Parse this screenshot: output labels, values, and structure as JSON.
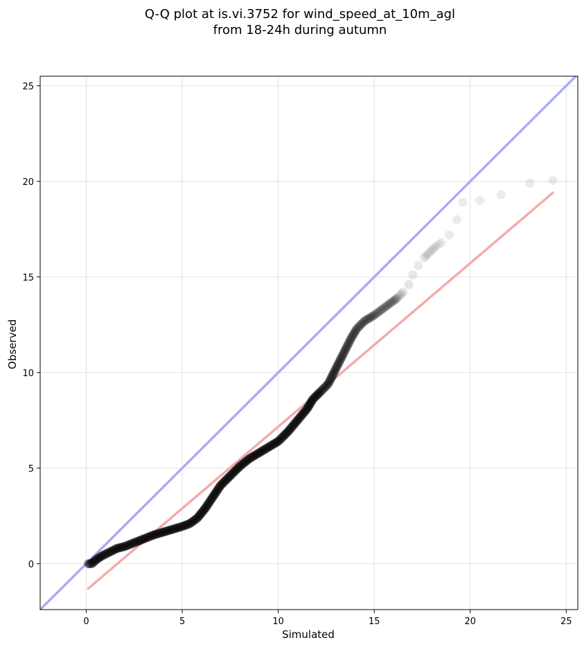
{
  "chart_data": {
    "type": "scatter",
    "title_line1": "Q-Q plot at is.vi.3752 for wind_speed_at_10m_agl",
    "title_line2": "from 18-24h during autumn",
    "xlabel": "Simulated",
    "ylabel": "Observed",
    "xlim": [
      -2.4,
      25.6
    ],
    "ylim": [
      -2.4,
      25.5
    ],
    "xticks": [
      0,
      5,
      10,
      15,
      20,
      25
    ],
    "yticks": [
      0,
      5,
      10,
      15,
      20,
      25
    ],
    "grid": true,
    "series": [
      {
        "kind": "quantile-points",
        "color": "#000000",
        "points": [
          [
            0.1,
            0.0
          ],
          [
            0.3,
            0.0
          ],
          [
            0.5,
            0.2
          ],
          [
            0.8,
            0.4
          ],
          [
            1.2,
            0.6
          ],
          [
            1.6,
            0.8
          ],
          [
            2.0,
            0.9
          ],
          [
            2.5,
            1.1
          ],
          [
            3.0,
            1.3
          ],
          [
            3.5,
            1.5
          ],
          [
            4.0,
            1.65
          ],
          [
            4.5,
            1.8
          ],
          [
            5.0,
            1.95
          ],
          [
            5.4,
            2.1
          ],
          [
            5.8,
            2.4
          ],
          [
            6.2,
            2.9
          ],
          [
            6.6,
            3.5
          ],
          [
            7.0,
            4.1
          ],
          [
            7.5,
            4.6
          ],
          [
            8.0,
            5.1
          ],
          [
            8.5,
            5.5
          ],
          [
            9.0,
            5.8
          ],
          [
            9.5,
            6.1
          ],
          [
            10.0,
            6.4
          ],
          [
            10.5,
            6.9
          ],
          [
            11.0,
            7.5
          ],
          [
            11.5,
            8.1
          ],
          [
            11.8,
            8.6
          ],
          [
            12.2,
            9.0
          ],
          [
            12.6,
            9.4
          ],
          [
            12.9,
            10.0
          ],
          [
            13.2,
            10.6
          ],
          [
            13.5,
            11.2
          ],
          [
            13.8,
            11.8
          ],
          [
            14.1,
            12.3
          ],
          [
            14.5,
            12.7
          ],
          [
            15.0,
            13.0
          ],
          [
            15.4,
            13.3
          ],
          [
            15.8,
            13.6
          ],
          [
            16.2,
            13.9
          ],
          [
            16.5,
            14.2
          ],
          [
            16.8,
            14.6
          ],
          [
            17.0,
            15.1
          ],
          [
            17.3,
            15.6
          ],
          [
            17.6,
            16.0
          ],
          [
            17.9,
            16.3
          ],
          [
            18.2,
            16.6
          ],
          [
            18.5,
            16.8
          ],
          [
            18.9,
            17.2
          ],
          [
            19.3,
            18.0
          ],
          [
            19.6,
            18.9
          ],
          [
            20.5,
            19.0
          ],
          [
            21.6,
            19.3
          ],
          [
            23.1,
            19.9
          ],
          [
            24.3,
            20.05
          ]
        ]
      },
      {
        "kind": "reference-line",
        "name": "1:1",
        "color": "#aaaaf5",
        "from": [
          -2.4,
          -2.4
        ],
        "to": [
          25.6,
          25.6
        ]
      },
      {
        "kind": "fit-line",
        "name": "fit",
        "color": "#f5aaaa",
        "from": [
          0.1,
          -1.3
        ],
        "to": [
          24.3,
          19.4
        ]
      }
    ]
  }
}
